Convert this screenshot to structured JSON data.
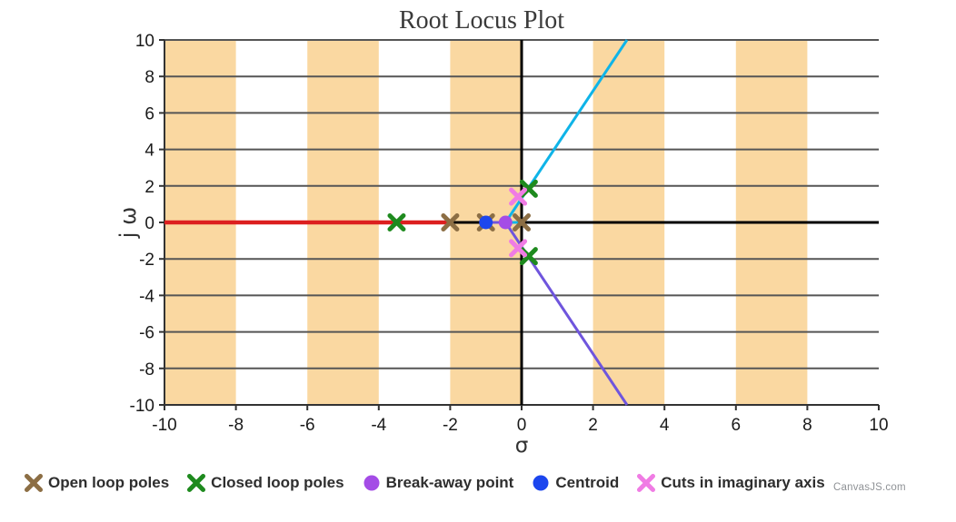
{
  "header": {
    "title": "Root Locus Plot"
  },
  "axes": {
    "x_label": "σ",
    "y_label": "j ω"
  },
  "watermark": "CanvasJS.com",
  "legend": {
    "items": [
      {
        "label": "Open loop poles",
        "shape": "cross",
        "color": "#8c6e44"
      },
      {
        "label": "Closed loop poles",
        "shape": "cross",
        "color": "#1e8a1e"
      },
      {
        "label": "Break-away point",
        "shape": "circle",
        "color": "#a44ce6"
      },
      {
        "label": "Centroid",
        "shape": "circle",
        "color": "#1c46ee"
      },
      {
        "label": "Cuts in imaginary axis",
        "shape": "cross",
        "color": "#f07ce4"
      }
    ]
  },
  "chart_data": {
    "type": "line",
    "title": "Root Locus Plot",
    "xlabel": "σ",
    "ylabel": "j ω",
    "xlim": [
      -10,
      10
    ],
    "ylim": [
      -10,
      10
    ],
    "x_ticks": [
      -10,
      -8,
      -6,
      -4,
      -2,
      0,
      2,
      4,
      6,
      8,
      10
    ],
    "y_ticks": [
      10,
      8,
      6,
      4,
      2,
      0,
      -2,
      -4,
      -6,
      -8,
      -10
    ],
    "grid": "horizontal-only",
    "legend_position": "bottom",
    "colors": {
      "band": "#fad8a1",
      "gridline": "#555555",
      "axis_border": "#333333",
      "zero_axis": "#000000",
      "tick_label": "#1a1a1a"
    },
    "bands_x": [
      [
        -10,
        -8
      ],
      [
        -6,
        -4
      ],
      [
        -2,
        0
      ],
      [
        2,
        4
      ],
      [
        6,
        8
      ]
    ],
    "series": [
      {
        "name": "real-axis-branch",
        "color": "#dc1f1f",
        "width": 4.5,
        "points": [
          [
            -10,
            0
          ],
          [
            -2,
            0
          ]
        ]
      },
      {
        "name": "upper-complex-branch",
        "color": "#0fb4e8",
        "width": 3,
        "points": [
          [
            0,
            0
          ],
          [
            -0.45,
            0
          ],
          [
            2.95,
            10
          ]
        ]
      },
      {
        "name": "lower-complex-branch",
        "color": "#6f55dd",
        "width": 3,
        "points": [
          [
            -1,
            0
          ],
          [
            -0.45,
            0
          ],
          [
            2.95,
            -10
          ]
        ]
      }
    ],
    "markers": [
      {
        "name": "open-loop-poles",
        "shape": "cross",
        "color": "#8c6e44",
        "points": [
          [
            0,
            0
          ],
          [
            -1,
            0
          ],
          [
            -2,
            0
          ]
        ]
      },
      {
        "name": "closed-loop-poles",
        "shape": "cross",
        "color": "#1e8a1e",
        "points": [
          [
            -3.5,
            0
          ],
          [
            0.2,
            1.85
          ],
          [
            0.2,
            -1.85
          ]
        ]
      },
      {
        "name": "break-away-point",
        "shape": "circle",
        "color": "#a44ce6",
        "points": [
          [
            -0.45,
            0
          ]
        ]
      },
      {
        "name": "centroid",
        "shape": "circle",
        "color": "#1c46ee",
        "points": [
          [
            -1,
            0
          ]
        ]
      },
      {
        "name": "imaginary-axis-cuts",
        "shape": "cross",
        "color": "#f07ce4",
        "points": [
          [
            -0.1,
            1.41
          ],
          [
            -0.1,
            -1.41
          ]
        ]
      }
    ]
  }
}
